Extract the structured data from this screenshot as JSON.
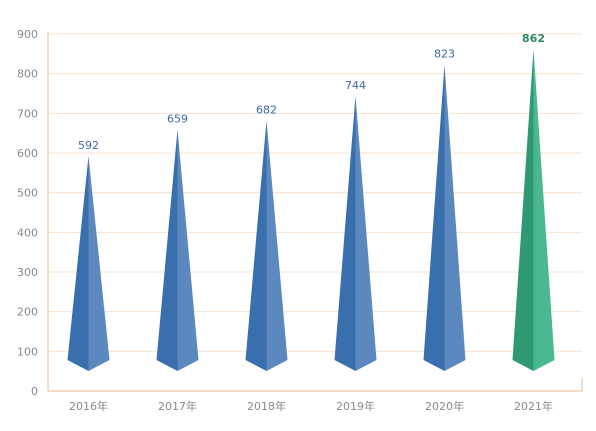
{
  "chart_data": {
    "type": "bar",
    "categories": [
      "2016年",
      "2017年",
      "2018年",
      "2019年",
      "2020年",
      "2021年"
    ],
    "values": [
      592,
      659,
      682,
      744,
      823,
      862
    ],
    "value_labels": [
      "592",
      "659",
      "682",
      "744",
      "823",
      "862"
    ],
    "title": "",
    "xlabel": "",
    "ylabel": "",
    "ylim": [
      0,
      900
    ],
    "yticks": [
      0,
      100,
      200,
      300,
      400,
      500,
      600,
      700,
      800,
      900
    ],
    "ytick_labels": [
      "0",
      "100",
      "200",
      "300",
      "400",
      "500",
      "600",
      "700",
      "800",
      "900"
    ],
    "grid": true,
    "legend": "none",
    "highlight_index": 5,
    "colors": {
      "bar_light": "#5b88bf",
      "bar_dark": "#3a6fae",
      "bar_highlight_light": "#4bb890",
      "bar_highlight_dark": "#2f9a72",
      "label": "#3b6aa6",
      "label_highlight": "#2e8a66",
      "axis": "#f0c9a0",
      "grid": "#f7e3d0",
      "tick_text": "#8a8a8a"
    }
  }
}
